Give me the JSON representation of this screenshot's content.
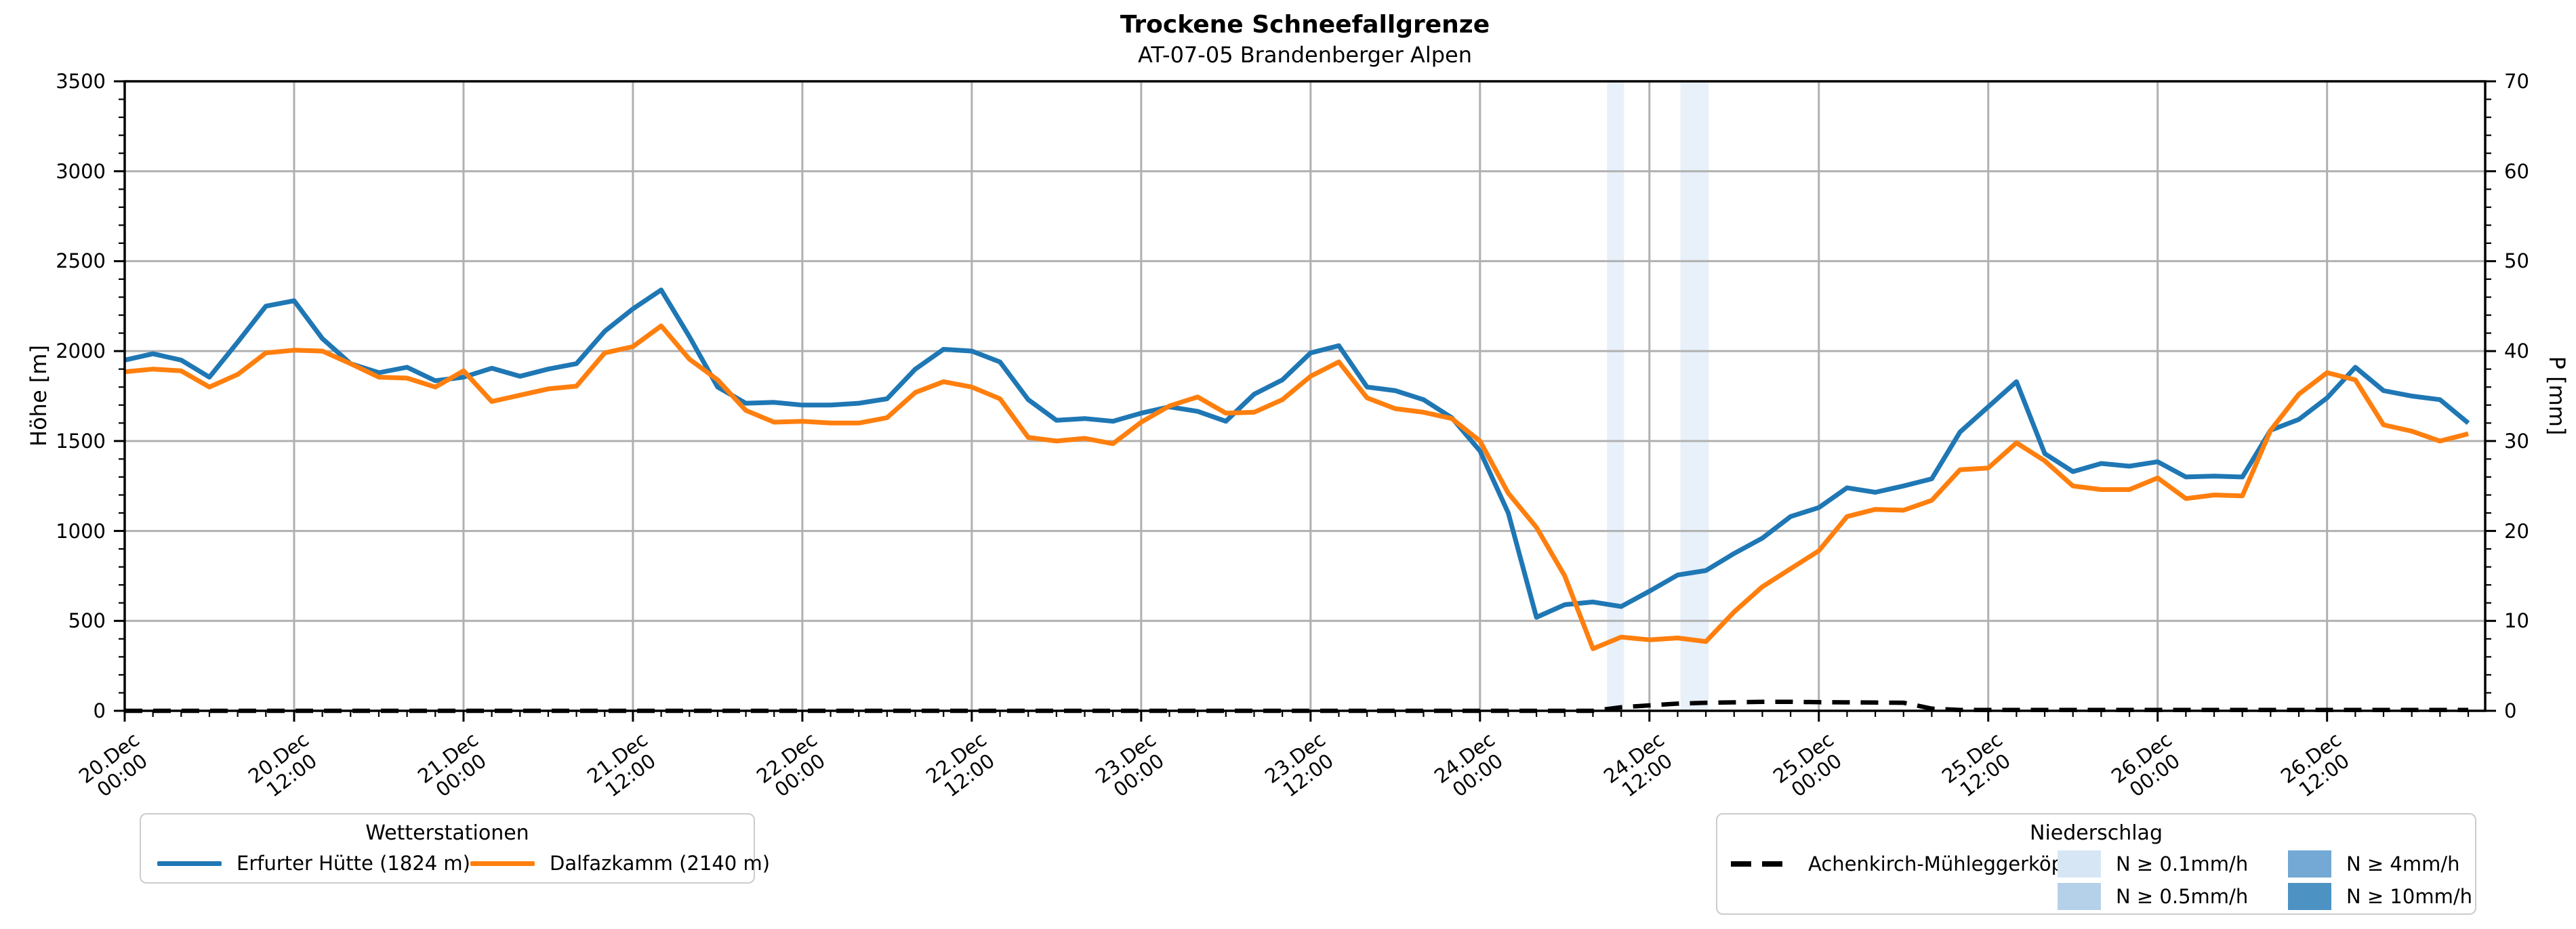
{
  "title": "Trockene Schneefallgrenze",
  "subtitle": "AT-07-05 Brandenberger Alpen",
  "axes": {
    "y_left_label": "Höhe [m]",
    "y_right_label": "P [mm]",
    "y_left_ticks": [
      "0",
      "500",
      "1000",
      "1500",
      "2000",
      "2500",
      "3000",
      "3500"
    ],
    "y_right_ticks": [
      "0",
      "10",
      "20",
      "30",
      "40",
      "50",
      "60",
      "70"
    ],
    "x_ticks": [
      {
        "hour": 0,
        "date": "20.Dec",
        "time": "00:00"
      },
      {
        "hour": 12,
        "date": "20.Dec",
        "time": "12:00"
      },
      {
        "hour": 24,
        "date": "21.Dec",
        "time": "00:00"
      },
      {
        "hour": 36,
        "date": "21.Dec",
        "time": "12:00"
      },
      {
        "hour": 48,
        "date": "22.Dec",
        "time": "00:00"
      },
      {
        "hour": 60,
        "date": "22.Dec",
        "time": "12:00"
      },
      {
        "hour": 72,
        "date": "23.Dec",
        "time": "00:00"
      },
      {
        "hour": 84,
        "date": "23.Dec",
        "time": "12:00"
      },
      {
        "hour": 96,
        "date": "24.Dec",
        "time": "00:00"
      },
      {
        "hour": 108,
        "date": "24.Dec",
        "time": "12:00"
      },
      {
        "hour": 120,
        "date": "25.Dec",
        "time": "00:00"
      },
      {
        "hour": 132,
        "date": "25.Dec",
        "time": "12:00"
      },
      {
        "hour": 144,
        "date": "26.Dec",
        "time": "00:00"
      },
      {
        "hour": 156,
        "date": "26.Dec",
        "time": "12:00"
      }
    ]
  },
  "chart_data": {
    "type": "line",
    "title": "Trockene Schneefallgrenze",
    "subtitle": "AT-07-05 Brandenberger Alpen",
    "xlabel": "",
    "ylabel_left": "Höhe [m]",
    "ylabel_right": "P [mm]",
    "x_unit": "hours since 20.Dec 00:00",
    "x_step_hours": 2,
    "x_range": [
      0,
      167.2
    ],
    "y_left_range": [
      0,
      3500
    ],
    "y_right_range": [
      0,
      70
    ],
    "grid": true,
    "legend_position": "below",
    "series": [
      {
        "name": "Erfurter Hütte (1824 m)",
        "axis": "left",
        "color": "#1f77b4",
        "style": "solid",
        "values": [
          1950,
          1985,
          1950,
          1855,
          2050,
          2250,
          2280,
          2070,
          1930,
          1880,
          1910,
          1835,
          1855,
          1905,
          1860,
          1900,
          1930,
          2110,
          2235,
          2340,
          2080,
          1800,
          1710,
          1715,
          1700,
          1700,
          1710,
          1735,
          1900,
          2010,
          2000,
          1940,
          1730,
          1615,
          1625,
          1610,
          1655,
          1690,
          1665,
          1610,
          1760,
          1840,
          1990,
          2030,
          1800,
          1780,
          1730,
          1630,
          1445,
          1100,
          520,
          590,
          605,
          580,
          665,
          755,
          780,
          875,
          960,
          1080,
          1130,
          1240,
          1215,
          1250,
          1290,
          1550,
          1690,
          1830,
          1430,
          1330,
          1375,
          1360,
          1385,
          1300,
          1305,
          1300,
          1560,
          1620,
          1740,
          1910,
          1780,
          1750,
          1730,
          1600
        ]
      },
      {
        "name": "Dalfazkamm (2140 m)",
        "axis": "left",
        "color": "#ff7f0e",
        "style": "solid",
        "values": [
          1885,
          1900,
          1890,
          1800,
          1870,
          1990,
          2005,
          2000,
          1930,
          1855,
          1850,
          1800,
          1890,
          1720,
          1755,
          1790,
          1805,
          1990,
          2025,
          2140,
          1955,
          1840,
          1670,
          1605,
          1610,
          1600,
          1600,
          1630,
          1770,
          1830,
          1800,
          1735,
          1520,
          1500,
          1515,
          1485,
          1605,
          1695,
          1745,
          1655,
          1660,
          1730,
          1860,
          1940,
          1740,
          1680,
          1660,
          1625,
          1500,
          1210,
          1020,
          750,
          345,
          410,
          395,
          405,
          385,
          550,
          690,
          790,
          890,
          1080,
          1120,
          1115,
          1170,
          1340,
          1350,
          1490,
          1390,
          1250,
          1230,
          1230,
          1295,
          1180,
          1200,
          1195,
          1560,
          1760,
          1880,
          1840,
          1590,
          1555,
          1500,
          1540
        ]
      },
      {
        "name": "Achenkirch-Mühleggerköpfl",
        "axis": "left",
        "color": "#000000",
        "style": "dashed",
        "values": [
          0,
          0,
          0,
          0,
          0,
          0,
          0,
          0,
          0,
          0,
          0,
          0,
          0,
          0,
          0,
          0,
          0,
          0,
          0,
          0,
          0,
          0,
          0,
          0,
          0,
          0,
          0,
          0,
          0,
          0,
          0,
          0,
          0,
          0,
          0,
          0,
          0,
          0,
          0,
          0,
          0,
          0,
          0,
          0,
          0,
          0,
          0,
          0,
          0,
          0,
          0,
          0,
          0,
          20,
          30,
          40,
          45,
          47,
          50,
          50,
          48,
          47,
          46,
          45,
          12,
          5,
          5,
          5,
          5,
          5,
          5,
          5,
          5,
          5,
          5,
          5,
          5,
          5,
          5,
          5,
          5,
          5,
          5,
          5
        ]
      }
    ],
    "precip_bands": [
      {
        "start_hour": 105.0,
        "end_hour": 106.2,
        "class": "N ≥ 0.1mm/h",
        "color": "#e8f0fa"
      },
      {
        "start_hour": 110.2,
        "end_hour": 112.2,
        "class": "N ≥ 0.1mm/h",
        "color": "#e8f0fa"
      }
    ]
  },
  "legend_stations": {
    "title": "Wetterstationen",
    "entries": [
      {
        "label": "Erfurter Hütte (1824 m)",
        "color": "#1f77b4"
      },
      {
        "label": "Dalfazkamm (2140 m)",
        "color": "#ff7f0e"
      }
    ]
  },
  "legend_precip": {
    "title": "Niederschlag",
    "line_entry": {
      "label": "Achenkirch-Mühleggerköpfl",
      "color": "#000000"
    },
    "classes": [
      {
        "label": "N ≥ 0.1mm/h",
        "color": "#d7e6f4"
      },
      {
        "label": "N ≥ 0.5mm/h",
        "color": "#b5d1e9"
      },
      {
        "label": "N ≥ 4mm/h",
        "color": "#73a9d4"
      },
      {
        "label": "N ≥ 10mm/h",
        "color": "#4c92c3"
      }
    ]
  },
  "colors": {
    "background": "#ffffff",
    "grid": "#b0b0b0",
    "spine": "#000000",
    "precip_band_fill": "#e8f0fa"
  }
}
